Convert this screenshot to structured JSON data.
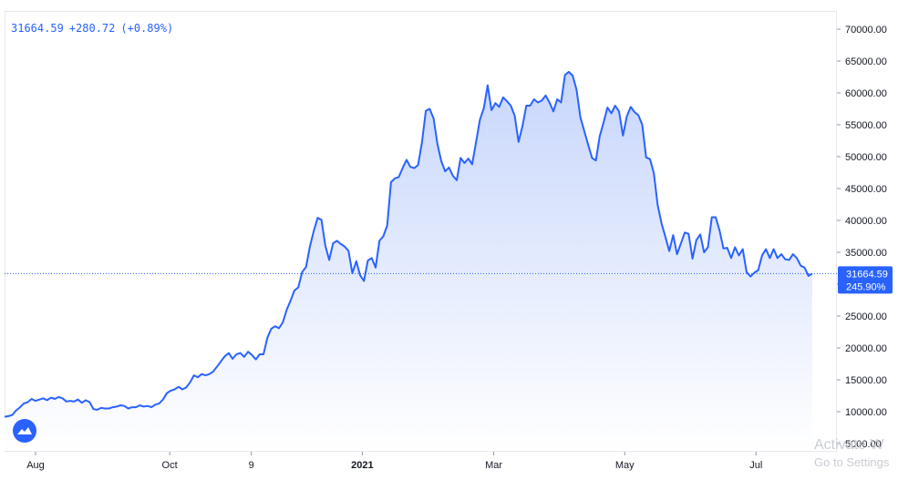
{
  "header": {
    "price": "31664.59",
    "change": "+280.72",
    "change_pct": "(+0.89%)"
  },
  "badge": {
    "price": "31664.59",
    "percent": "245.90%"
  },
  "watermark": {
    "line1": "Activate W",
    "line2": "Go to Settings"
  },
  "colors": {
    "line": "#2962ff",
    "fill_top": "#c7d6fb",
    "fill_bottom": "#ffffff",
    "badge": "#2962ff",
    "axis_text": "#131722"
  },
  "chart_data": {
    "type": "area",
    "y_axis_position": "right",
    "ylim": [
      3000,
      73000
    ],
    "y_ticks": [
      "70000.00",
      "65000.00",
      "60000.00",
      "55000.00",
      "50000.00",
      "45000.00",
      "40000.00",
      "35000.00",
      "30000.00",
      "25000.00",
      "20000.00",
      "15000.00",
      "10000.00",
      "5000.00"
    ],
    "x_ticks": [
      {
        "label": "Aug",
        "t": 0.0384
      },
      {
        "label": "Oct",
        "t": 0.2044
      },
      {
        "label": "9",
        "t": 0.3055
      },
      {
        "label": "2021",
        "t": 0.4429
      },
      {
        "label": "Mar",
        "t": 0.6056
      },
      {
        "label": "May",
        "t": 0.7678
      },
      {
        "label": "Jul",
        "t": 0.9303
      }
    ],
    "last_value": 31664.59,
    "series": [
      {
        "values": [
          9200,
          9300,
          9500,
          10200,
          10700,
          11300,
          11500,
          12000,
          11700,
          11900,
          12100,
          11800,
          12200,
          12000,
          12300,
          12100,
          11600,
          11700,
          11600,
          11900,
          11400,
          11800,
          11500,
          10400,
          10300,
          10600,
          10500,
          10500,
          10700,
          10800,
          11000,
          10900,
          10500,
          10700,
          10700,
          11000,
          10800,
          10900,
          10700,
          11100,
          11300,
          11900,
          12900,
          13300,
          13500,
          13900,
          13500,
          13800,
          14600,
          15700,
          15400,
          15900,
          15700,
          15900,
          16300,
          17100,
          17900,
          18700,
          19200,
          18300,
          19000,
          19200,
          18600,
          19400,
          18900,
          18200,
          19000,
          19000,
          21600,
          23000,
          23400,
          23100,
          24000,
          26000,
          27400,
          29000,
          29500,
          31900,
          32700,
          35900,
          38300,
          40400,
          40100,
          36000,
          33800,
          36400,
          36800,
          36300,
          35900,
          35200,
          31700,
          33600,
          31400,
          30500,
          33700,
          34100,
          32600,
          36800,
          37500,
          39200,
          46000,
          46600,
          46800,
          48200,
          49500,
          48400,
          48200,
          48700,
          52200,
          57200,
          57500,
          56000,
          52000,
          49300,
          47700,
          48300,
          47000,
          46300,
          49800,
          49000,
          49700,
          48800,
          52300,
          55800,
          57600,
          61200,
          57300,
          58400,
          57800,
          59300,
          58700,
          58000,
          56400,
          52300,
          54800,
          58000,
          58000,
          59000,
          58500,
          58800,
          59600,
          58500,
          57100,
          59000,
          58500,
          62800,
          63300,
          62700,
          60500,
          56200,
          54000,
          51900,
          49800,
          49400,
          53200,
          55400,
          57700,
          56800,
          58000,
          57100,
          53300,
          56300,
          57800,
          57000,
          56500,
          55000,
          49900,
          49600,
          47400,
          42400,
          39500,
          37400,
          35200,
          37700,
          34700,
          36400,
          38100,
          37900,
          34000,
          36900,
          37800,
          35000,
          35800,
          40500,
          40500,
          38400,
          35600,
          35700,
          34100,
          35800,
          34500,
          35500,
          31900,
          31200,
          31800,
          32200,
          34500,
          35500,
          34100,
          35500,
          34100,
          34700,
          33900,
          33800,
          34700,
          34100,
          32900,
          32600,
          31300,
          31664.59
        ]
      }
    ]
  }
}
